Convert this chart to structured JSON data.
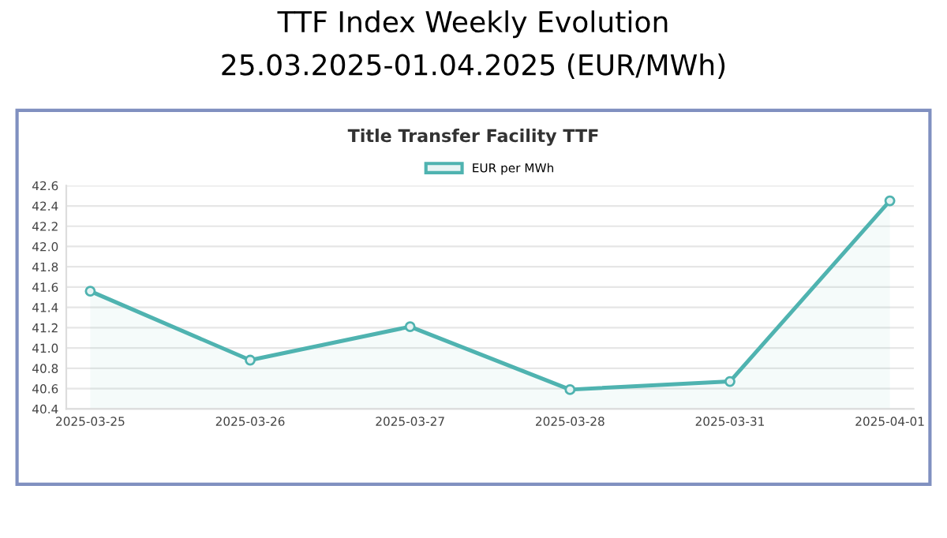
{
  "chart_data": {
    "type": "area",
    "title": "TTF Index Weekly Evolution",
    "subtitle": "25.03.2025-01.04.2025 (EUR/MWh)",
    "annotations": [
      "Title Transfer Facility TTF"
    ],
    "categories": [
      "2025-03-25",
      "2025-03-26",
      "2025-03-27",
      "2025-03-28",
      "2025-03-31",
      "2025-04-01"
    ],
    "series": [
      {
        "name": "EUR per MWh",
        "color": "#4fb3b0",
        "values": [
          41.56,
          40.88,
          41.21,
          40.59,
          40.67,
          42.45
        ]
      }
    ],
    "ylim": [
      40.4,
      42.6
    ],
    "yticks": [
      40.4,
      40.6,
      40.8,
      {
        "value": 41,
        "label": "41.0"
      },
      41.2,
      41.4,
      41.6,
      41.8,
      {
        "value": 42,
        "label": "42.0"
      },
      42.2,
      42.4,
      42.6
    ],
    "grid": "y",
    "legend": "top",
    "marker": "circle",
    "line_style": "solid"
  }
}
